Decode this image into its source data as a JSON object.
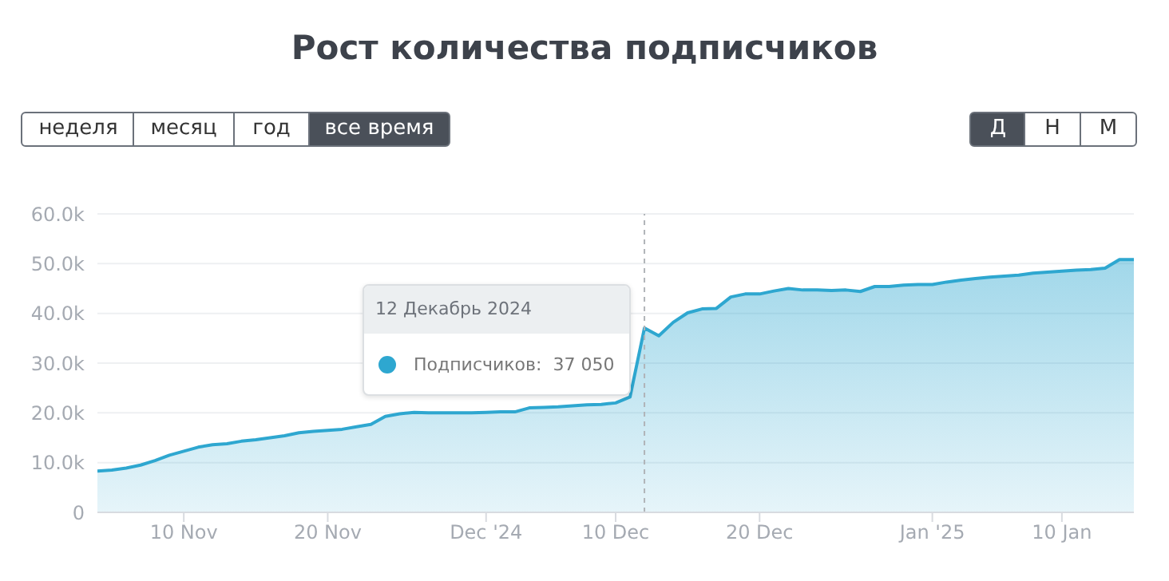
{
  "chart_data": {
    "type": "area",
    "title": "Рост количества подписчиков",
    "x": [
      "2024-11-04",
      "2024-11-05",
      "2024-11-06",
      "2024-11-07",
      "2024-11-08",
      "2024-11-09",
      "2024-11-10",
      "2024-11-11",
      "2024-11-12",
      "2024-11-13",
      "2024-11-14",
      "2024-11-15",
      "2024-11-16",
      "2024-11-17",
      "2024-11-18",
      "2024-11-19",
      "2024-11-20",
      "2024-11-21",
      "2024-11-22",
      "2024-11-23",
      "2024-11-24",
      "2024-11-25",
      "2024-11-26",
      "2024-11-27",
      "2024-11-28",
      "2024-11-29",
      "2024-11-30",
      "2024-12-01",
      "2024-12-02",
      "2024-12-03",
      "2024-12-04",
      "2024-12-05",
      "2024-12-06",
      "2024-12-07",
      "2024-12-08",
      "2024-12-09",
      "2024-12-10",
      "2024-12-11",
      "2024-12-12",
      "2024-12-13",
      "2024-12-14",
      "2024-12-15",
      "2024-12-16",
      "2024-12-17",
      "2024-12-18",
      "2024-12-19",
      "2024-12-20",
      "2024-12-21",
      "2024-12-22",
      "2024-12-23",
      "2024-12-24",
      "2024-12-25",
      "2024-12-26",
      "2024-12-27",
      "2024-12-28",
      "2024-12-29",
      "2024-12-30",
      "2024-12-31",
      "2025-01-01",
      "2025-01-02",
      "2025-01-03",
      "2025-01-04",
      "2025-01-05",
      "2025-01-06",
      "2025-01-07",
      "2025-01-08",
      "2025-01-09",
      "2025-01-10",
      "2025-01-11",
      "2025-01-12",
      "2025-01-13",
      "2025-01-14",
      "2025-01-15"
    ],
    "series": [
      {
        "color": "#2ea7d0",
        "values": [
          8300,
          8500,
          8900,
          9500,
          10400,
          11500,
          12300,
          13100,
          13600,
          13800,
          14300,
          14600,
          15000,
          15400,
          16000,
          16300,
          16500,
          16700,
          17200,
          17700,
          19300,
          19800,
          20100,
          20000,
          20000,
          20000,
          20000,
          20100,
          20200,
          20200,
          21000,
          21100,
          21200,
          21400,
          21600,
          21700,
          22000,
          23200,
          37050,
          35500,
          38200,
          40100,
          40900,
          41000,
          43300,
          43900,
          43900,
          44500,
          45000,
          44700,
          44700,
          44600,
          44700,
          44400,
          45400,
          45400,
          45700,
          45800,
          45800,
          46300,
          46700,
          47000,
          47300,
          47500,
          47700,
          48100,
          48300,
          48500,
          48700,
          48800,
          49100,
          50800,
          50800
        ]
      }
    ],
    "xlim": [
      "2024-11-04",
      "2025-01-15"
    ],
    "xticks": [
      {
        "value": "2024-11-10",
        "label": "10 Nov"
      },
      {
        "value": "2024-11-20",
        "label": "20 Nov"
      },
      {
        "value": "2024-12-01",
        "label": "Dec '24"
      },
      {
        "value": "2024-12-10",
        "label": "10 Dec"
      },
      {
        "value": "2024-12-20",
        "label": "20 Dec"
      },
      {
        "value": "2025-01-01",
        "label": "Jan '25"
      },
      {
        "value": "2025-01-10",
        "label": "10 Jan"
      }
    ],
    "ylim": [
      0,
      60000
    ],
    "yticks": [
      0,
      {
        "value": 10000,
        "label": "10.0k"
      },
      {
        "value": 20000,
        "label": "20.0k"
      },
      {
        "value": 30000,
        "label": "30.0k"
      },
      {
        "value": 40000,
        "label": "40.0k"
      },
      {
        "value": 50000,
        "label": "50.0k"
      },
      {
        "value": 60000,
        "label": "60.0k"
      }
    ],
    "grid": "y",
    "ref_lines": [
      {
        "axis": "x",
        "value": "2024-12-12",
        "color": "#b0b4b8",
        "line_style": "dashed"
      }
    ],
    "annotations": [
      "неделя",
      "месяц",
      "год",
      "все время",
      "Д",
      "Н",
      "М",
      "12 Декабрь 2024",
      "Подписчиков:  37 050"
    ]
  }
}
